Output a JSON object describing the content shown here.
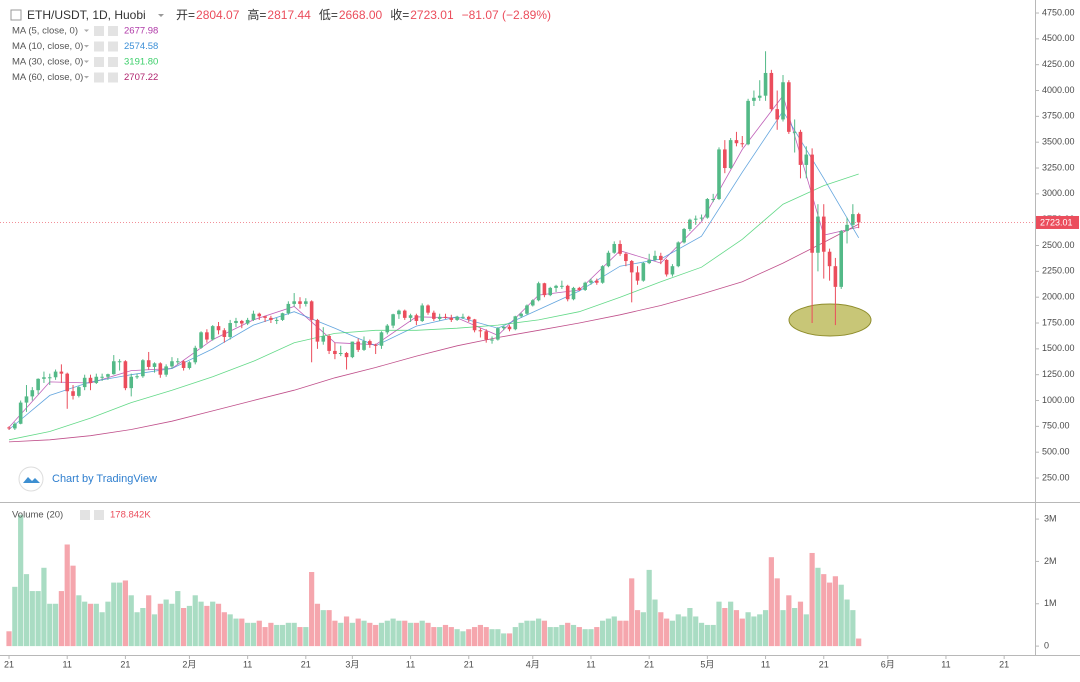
{
  "chart_data": {
    "type": "candlestick",
    "title": "ETH/USDT, 1D, Huobi",
    "header_fields": [
      {
        "label": "开=",
        "value": "2804.07"
      },
      {
        "label": "高=",
        "value": "2817.44"
      },
      {
        "label": "低=",
        "value": "2668.00"
      },
      {
        "label": "收=",
        "value": "2723.01"
      }
    ],
    "change": "−81.07 (−2.89%)",
    "watermark": "Chart by TradingView",
    "up_color": "#53b987",
    "down_color": "#eb4d5c",
    "grid": false,
    "x": [
      0,
      1,
      2,
      3,
      4,
      5,
      6,
      7,
      8,
      9,
      10,
      11,
      12,
      13,
      14,
      15,
      16,
      17,
      18,
      19,
      20,
      21,
      22,
      23,
      24,
      25,
      26,
      27,
      28,
      29,
      30,
      31,
      32,
      33,
      34,
      35,
      36,
      37,
      38,
      39,
      40,
      41,
      42,
      43,
      44,
      45,
      46,
      47,
      48,
      49,
      50,
      51,
      52,
      53,
      54,
      55,
      56,
      57,
      58,
      59,
      60,
      61,
      62,
      63,
      64,
      65,
      66,
      67,
      68,
      69,
      70,
      71,
      72,
      73,
      74,
      75,
      76,
      77,
      78,
      79,
      80,
      81,
      82,
      83,
      84,
      85,
      86,
      87,
      88,
      89,
      90,
      91,
      92,
      93,
      94,
      95,
      96,
      97,
      98,
      99,
      100,
      101,
      102,
      103,
      104,
      105,
      106,
      107,
      108,
      109,
      110,
      111,
      112,
      113,
      114,
      115,
      116,
      117,
      118,
      119,
      120,
      121,
      122,
      123,
      124,
      125,
      126,
      127,
      128,
      129,
      130,
      131,
      132,
      133,
      134,
      135,
      136,
      137,
      138,
      139,
      140,
      141,
      142,
      143,
      144,
      145,
      146
    ],
    "open": [
      740,
      730,
      775,
      980,
      1040,
      1100,
      1210,
      1225,
      1225,
      1280,
      1260,
      1090,
      1045,
      1130,
      1220,
      1170,
      1230,
      1230,
      1255,
      1380,
      1380,
      1120,
      1230,
      1235,
      1390,
      1325,
      1360,
      1250,
      1330,
      1380,
      1380,
      1315,
      1370,
      1510,
      1660,
      1590,
      1720,
      1680,
      1615,
      1750,
      1770,
      1745,
      1780,
      1840,
      1815,
      1800,
      1780,
      1780,
      1845,
      1935,
      1960,
      1935,
      1960,
      1780,
      1570,
      1625,
      1480,
      1450,
      1460,
      1420,
      1570,
      1490,
      1575,
      1540,
      1530,
      1660,
      1725,
      1835,
      1870,
      1800,
      1825,
      1770,
      1920,
      1850,
      1790,
      1810,
      1800,
      1780,
      1810,
      1810,
      1785,
      1680,
      1670,
      1590,
      1590,
      1700,
      1715,
      1690,
      1815,
      1840,
      1920,
      1970,
      2135,
      2020,
      2090,
      2110,
      2110,
      1980,
      2090,
      2070,
      2140,
      2160,
      2140,
      2300,
      2430,
      2515,
      2420,
      2350,
      2240,
      2160,
      2330,
      2360,
      2400,
      2360,
      2220,
      2300,
      2530,
      2660,
      2750,
      2760,
      2770,
      2950,
      2950,
      3430,
      3250,
      3520,
      3490,
      3480,
      3900,
      3930,
      3950,
      4170,
      3820,
      3720,
      4080,
      3600,
      3600,
      3280,
      3380,
      2430,
      2780,
      2440,
      2300,
      2100,
      2640,
      2700,
      2804.07
    ],
    "high": [
      750,
      790,
      1000,
      1150,
      1130,
      1215,
      1280,
      1260,
      1300,
      1350,
      1270,
      1150,
      1140,
      1250,
      1250,
      1260,
      1260,
      1260,
      1440,
      1400,
      1390,
      1260,
      1260,
      1400,
      1470,
      1370,
      1370,
      1350,
      1420,
      1410,
      1390,
      1380,
      1530,
      1670,
      1690,
      1730,
      1760,
      1700,
      1780,
      1800,
      1780,
      1800,
      1870,
      1850,
      1820,
      1820,
      1800,
      1850,
      1960,
      2040,
      2000,
      1990,
      1970,
      1790,
      1710,
      1640,
      1560,
      1530,
      1470,
      1570,
      1600,
      1620,
      1590,
      1550,
      1670,
      1740,
      1840,
      1880,
      1880,
      1840,
      1840,
      1940,
      1930,
      1870,
      1840,
      1840,
      1830,
      1820,
      1840,
      1820,
      1790,
      1700,
      1690,
      1620,
      1710,
      1720,
      1730,
      1820,
      1850,
      1930,
      1980,
      2150,
      2140,
      2100,
      2120,
      2160,
      2120,
      2100,
      2100,
      2150,
      2180,
      2180,
      2310,
      2450,
      2540,
      2550,
      2430,
      2360,
      2300,
      2340,
      2420,
      2450,
      2430,
      2370,
      2320,
      2540,
      2670,
      2760,
      2790,
      2800,
      2960,
      3000,
      3450,
      3520,
      3540,
      3600,
      3560,
      3920,
      4000,
      4100,
      4380,
      4200,
      4000,
      4150,
      4100,
      3720,
      3620,
      3460,
      3440,
      2900,
      2900,
      2470,
      2380,
      2650,
      2770,
      2900,
      2817.44
    ],
    "low": [
      715,
      715,
      770,
      890,
      1000,
      1060,
      1170,
      1150,
      1200,
      1170,
      920,
      1010,
      1030,
      1100,
      1100,
      1160,
      1190,
      1200,
      1250,
      1290,
      1100,
      1040,
      1210,
      1220,
      1300,
      1270,
      1220,
      1230,
      1310,
      1350,
      1290,
      1300,
      1350,
      1500,
      1560,
      1580,
      1640,
      1560,
      1590,
      1710,
      1700,
      1730,
      1770,
      1780,
      1760,
      1750,
      1740,
      1770,
      1830,
      1910,
      1890,
      1910,
      1370,
      1500,
      1540,
      1450,
      1400,
      1430,
      1300,
      1410,
      1470,
      1480,
      1510,
      1450,
      1500,
      1640,
      1700,
      1790,
      1780,
      1760,
      1730,
      1760,
      1830,
      1770,
      1770,
      1790,
      1760,
      1770,
      1790,
      1760,
      1660,
      1610,
      1560,
      1550,
      1580,
      1680,
      1670,
      1680,
      1800,
      1830,
      1910,
      1960,
      2000,
      2010,
      2050,
      2080,
      1960,
      1970,
      2060,
      2060,
      2120,
      2120,
      2130,
      2290,
      2420,
      2400,
      2300,
      1950,
      2120,
      2150,
      2320,
      2350,
      2320,
      2200,
      2200,
      2290,
      2520,
      2640,
      2700,
      2740,
      2760,
      2920,
      2940,
      3200,
      3240,
      3460,
      3450,
      3470,
      3850,
      3900,
      3900,
      3800,
      3620,
      3700,
      3580,
      3400,
      3150,
      3150,
      1750,
      2250,
      2180,
      2160,
      1730,
      2080,
      2520,
      2660,
      2668
    ],
    "close": [
      730,
      775,
      980,
      1040,
      1100,
      1210,
      1225,
      1225,
      1280,
      1260,
      1090,
      1045,
      1130,
      1220,
      1170,
      1230,
      1230,
      1255,
      1380,
      1380,
      1120,
      1230,
      1235,
      1390,
      1325,
      1360,
      1250,
      1330,
      1380,
      1380,
      1315,
      1370,
      1510,
      1660,
      1590,
      1720,
      1680,
      1615,
      1750,
      1770,
      1745,
      1780,
      1840,
      1815,
      1800,
      1780,
      1780,
      1845,
      1935,
      1960,
      1935,
      1960,
      1780,
      1570,
      1625,
      1480,
      1450,
      1460,
      1420,
      1570,
      1490,
      1575,
      1540,
      1530,
      1660,
      1725,
      1835,
      1870,
      1800,
      1825,
      1770,
      1920,
      1850,
      1790,
      1810,
      1800,
      1780,
      1810,
      1810,
      1785,
      1680,
      1670,
      1590,
      1590,
      1700,
      1715,
      1690,
      1815,
      1840,
      1920,
      1970,
      2135,
      2020,
      2090,
      2110,
      2110,
      1980,
      2090,
      2070,
      2140,
      2160,
      2140,
      2300,
      2430,
      2515,
      2420,
      2350,
      2240,
      2160,
      2330,
      2360,
      2400,
      2360,
      2220,
      2300,
      2530,
      2660,
      2750,
      2760,
      2770,
      2950,
      2950,
      3430,
      3250,
      3520,
      3490,
      3480,
      3900,
      3930,
      3950,
      4170,
      3820,
      3720,
      4080,
      3600,
      3600,
      3280,
      3380,
      2430,
      2780,
      2440,
      2300,
      2100,
      2640,
      2700,
      2804,
      2723.01
    ],
    "volume": [
      350000,
      1400000,
      3100000,
      1700000,
      1300000,
      1300000,
      1850000,
      1000000,
      1000000,
      1300000,
      2400000,
      1900000,
      1200000,
      1050000,
      1000000,
      1000000,
      800000,
      1050000,
      1500000,
      1500000,
      1550000,
      1200000,
      800000,
      900000,
      1200000,
      750000,
      1000000,
      1100000,
      1000000,
      1300000,
      900000,
      950000,
      1200000,
      1050000,
      950000,
      1050000,
      1000000,
      800000,
      750000,
      650000,
      650000,
      550000,
      550000,
      600000,
      450000,
      550000,
      500000,
      500000,
      550000,
      550000,
      450000,
      450000,
      1750000,
      1000000,
      850000,
      850000,
      600000,
      550000,
      700000,
      550000,
      650000,
      600000,
      550000,
      500000,
      550000,
      600000,
      650000,
      600000,
      600000,
      550000,
      550000,
      600000,
      550000,
      450000,
      450000,
      500000,
      450000,
      400000,
      350000,
      400000,
      450000,
      500000,
      450000,
      400000,
      400000,
      300000,
      300000,
      450000,
      550000,
      600000,
      600000,
      650000,
      600000,
      450000,
      450000,
      500000,
      550000,
      500000,
      450000,
      400000,
      400000,
      450000,
      600000,
      650000,
      700000,
      600000,
      600000,
      1600000,
      850000,
      800000,
      1800000,
      1100000,
      800000,
      650000,
      600000,
      750000,
      700000,
      900000,
      700000,
      550000,
      500000,
      500000,
      1050000,
      900000,
      1050000,
      850000,
      650000,
      800000,
      700000,
      750000,
      850000,
      2100000,
      1600000,
      850000,
      1200000,
      900000,
      1050000,
      750000,
      2200000,
      1850000,
      1700000,
      1500000,
      1650000,
      1450000,
      1100000,
      850000,
      178842
    ],
    "xlim": [
      -1.55,
      176.3
    ],
    "xticks": [
      {
        "value": 0,
        "label": "21"
      },
      {
        "value": 10,
        "label": "11"
      },
      {
        "value": 20,
        "label": "21"
      },
      {
        "value": 31,
        "label": "2月"
      },
      {
        "value": 41,
        "label": "11"
      },
      {
        "value": 51,
        "label": "21"
      },
      {
        "value": 59,
        "label": "3月"
      },
      {
        "value": 69,
        "label": "11"
      },
      {
        "value": 79,
        "label": "21"
      },
      {
        "value": 90,
        "label": "4月"
      },
      {
        "value": 100,
        "label": "11"
      },
      {
        "value": 110,
        "label": "21"
      },
      {
        "value": 120,
        "label": "5月"
      },
      {
        "value": 130,
        "label": "11"
      },
      {
        "value": 140,
        "label": "21"
      },
      {
        "value": 151,
        "label": "6月"
      },
      {
        "value": 161,
        "label": "11"
      },
      {
        "value": 171,
        "label": "21"
      }
    ],
    "ylim": [
      18,
      4876
    ],
    "yticks": [
      {
        "value": 250,
        "label": "250.00"
      },
      {
        "value": 500,
        "label": "500.00"
      },
      {
        "value": 750,
        "label": "750.00"
      },
      {
        "value": 1000,
        "label": "1000.00"
      },
      {
        "value": 1250,
        "label": "1250.00"
      },
      {
        "value": 1500,
        "label": "1500.00"
      },
      {
        "value": 1750,
        "label": "1750.00"
      },
      {
        "value": 2000,
        "label": "2000.00"
      },
      {
        "value": 2250,
        "label": "2250.00"
      },
      {
        "value": 2500,
        "label": "2500.00"
      },
      {
        "value": 2750,
        "label": "2750.00"
      },
      {
        "value": 3000,
        "label": "3000.00"
      },
      {
        "value": 3250,
        "label": "3250.00"
      },
      {
        "value": 3500,
        "label": "3500.00"
      },
      {
        "value": 3750,
        "label": "3750.00"
      },
      {
        "value": 4000,
        "label": "4000.00"
      },
      {
        "value": 4250,
        "label": "4250.00"
      },
      {
        "value": 4500,
        "label": "4500.00"
      },
      {
        "value": 4750,
        "label": "4750.00"
      }
    ],
    "volume_ylim": [
      -210000,
      3380000
    ],
    "volume_ticks": [
      0,
      {
        "value": 1000000,
        "label": "1M"
      },
      {
        "value": 2000000,
        "label": "2M"
      },
      {
        "value": 3000000,
        "label": "3M"
      }
    ],
    "volume_legend": {
      "name": "Volume (20)",
      "value": "178.842K"
    },
    "ma": [
      {
        "name": "MA (5, close, 0)",
        "color": "#b03aa8",
        "legend_value": "2677.98",
        "x": [
          0,
          7,
          14,
          21,
          28,
          35,
          42,
          49,
          56,
          63,
          70,
          77,
          84,
          91,
          98,
          105,
          112,
          119,
          126,
          133,
          140,
          146
        ],
        "values": [
          740,
          1180,
          1170,
          1290,
          1310,
          1590,
          1780,
          1910,
          1560,
          1540,
          1810,
          1800,
          1630,
          2020,
          2070,
          2450,
          2330,
          2730,
          3430,
          3950,
          2600,
          2677.98
        ]
      },
      {
        "name": "MA (10, close, 0)",
        "color": "#3c8fd6",
        "legend_value": "2574.58",
        "x": [
          0,
          7,
          14,
          21,
          28,
          35,
          42,
          49,
          56,
          63,
          70,
          77,
          84,
          91,
          98,
          105,
          112,
          119,
          126,
          133,
          140,
          146
        ],
        "values": [
          720,
          1050,
          1180,
          1250,
          1310,
          1500,
          1730,
          1860,
          1700,
          1530,
          1720,
          1810,
          1700,
          1880,
          2060,
          2300,
          2370,
          2590,
          3210,
          3800,
          3150,
          2574.58
        ]
      },
      {
        "name": "MA (30, close, 0)",
        "color": "#3ccf6a",
        "legend_value": "3191.80",
        "x": [
          0,
          7,
          14,
          21,
          28,
          35,
          42,
          49,
          56,
          63,
          70,
          77,
          84,
          91,
          98,
          105,
          112,
          119,
          126,
          133,
          140,
          146
        ],
        "values": [
          620,
          700,
          830,
          980,
          1100,
          1230,
          1380,
          1560,
          1650,
          1680,
          1680,
          1700,
          1730,
          1780,
          1860,
          2000,
          2150,
          2290,
          2560,
          2900,
          3080,
          3191.8
        ]
      },
      {
        "name": "MA (60, close, 0)",
        "color": "#b0246e",
        "legend_value": "2707.22",
        "x": [
          0,
          7,
          14,
          21,
          28,
          35,
          42,
          49,
          56,
          63,
          70,
          77,
          84,
          91,
          98,
          105,
          112,
          119,
          126,
          133,
          140,
          146
        ],
        "values": [
          600,
          620,
          660,
          720,
          800,
          900,
          1000,
          1100,
          1220,
          1320,
          1430,
          1530,
          1610,
          1680,
          1750,
          1830,
          1920,
          2030,
          2150,
          2330,
          2530,
          2707.22
        ]
      }
    ]
  }
}
